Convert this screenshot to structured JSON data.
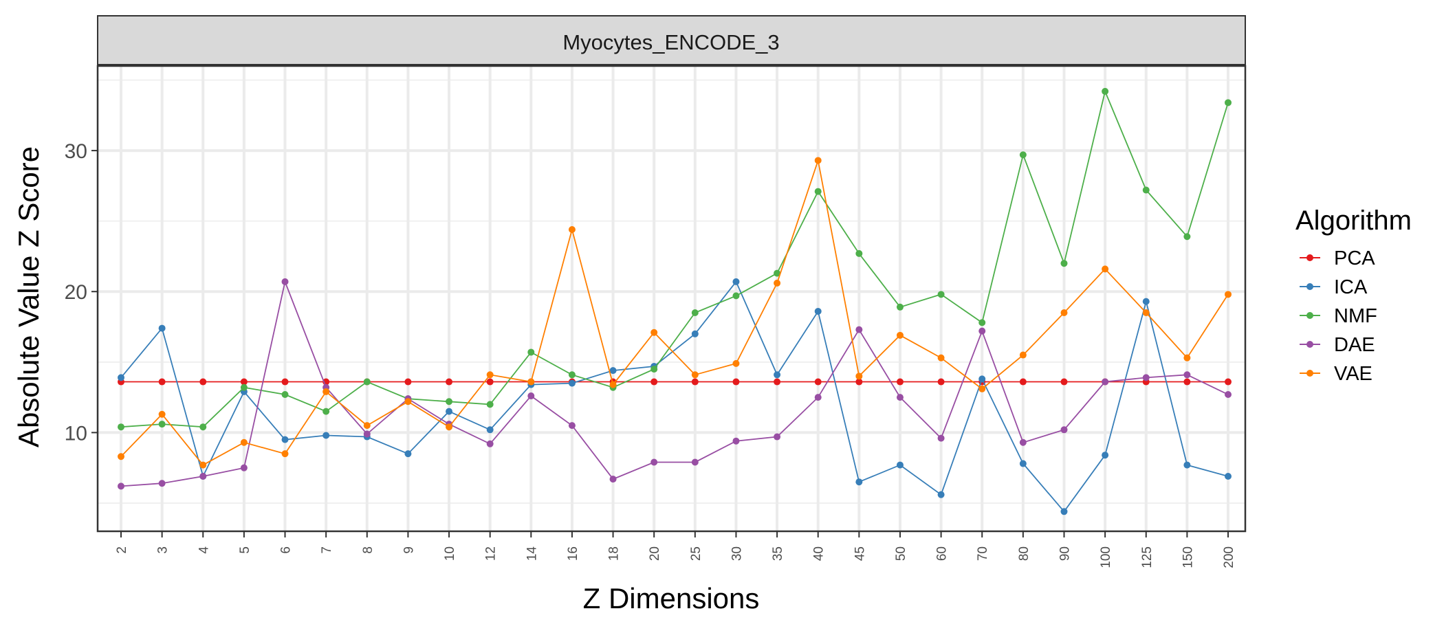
{
  "chart_data": {
    "type": "line",
    "title": "",
    "facet_label": "Myocytes_ENCODE_3",
    "xlabel": "Z Dimensions",
    "ylabel": "Absolute Value Z Score",
    "ylim": [
      3,
      36
    ],
    "y_ticks": [
      10,
      20,
      30
    ],
    "grid": true,
    "legend_title": "Algorithm",
    "legend_position": "right",
    "categories": [
      "2",
      "3",
      "4",
      "5",
      "6",
      "7",
      "8",
      "9",
      "10",
      "12",
      "14",
      "16",
      "18",
      "20",
      "25",
      "30",
      "35",
      "40",
      "45",
      "50",
      "60",
      "70",
      "80",
      "90",
      "100",
      "125",
      "150",
      "200"
    ],
    "series": [
      {
        "name": "PCA",
        "color": "#e41a1c",
        "values": [
          13.6,
          13.6,
          13.6,
          13.6,
          13.6,
          13.6,
          13.6,
          13.6,
          13.6,
          13.6,
          13.6,
          13.6,
          13.6,
          13.6,
          13.6,
          13.6,
          13.6,
          13.6,
          13.6,
          13.6,
          13.6,
          13.6,
          13.6,
          13.6,
          13.6,
          13.6,
          13.6,
          13.6
        ]
      },
      {
        "name": "ICA",
        "color": "#377eb8",
        "values": [
          13.9,
          17.4,
          6.9,
          12.9,
          9.5,
          9.8,
          9.7,
          8.5,
          11.5,
          10.2,
          13.4,
          13.5,
          14.4,
          14.7,
          17.0,
          20.7,
          14.1,
          18.6,
          6.5,
          7.7,
          5.6,
          13.8,
          7.8,
          4.4,
          8.4,
          19.3,
          7.7,
          6.9
        ]
      },
      {
        "name": "NMF",
        "color": "#4daf4a",
        "values": [
          10.4,
          10.6,
          10.4,
          13.2,
          12.7,
          11.5,
          13.6,
          12.4,
          12.2,
          12.0,
          15.7,
          14.1,
          13.2,
          14.5,
          18.5,
          19.7,
          21.3,
          27.1,
          22.7,
          18.9,
          19.8,
          17.8,
          29.7,
          22.0,
          34.2,
          27.2,
          23.9,
          33.4
        ]
      },
      {
        "name": "DAE",
        "color": "#984ea3",
        "values": [
          6.2,
          6.4,
          6.9,
          7.5,
          20.7,
          13.2,
          9.9,
          12.4,
          10.6,
          9.2,
          12.6,
          10.5,
          6.7,
          7.9,
          7.9,
          9.4,
          9.7,
          12.5,
          17.3,
          12.5,
          9.6,
          17.2,
          9.3,
          10.2,
          13.6,
          13.9,
          14.1,
          12.7
        ]
      },
      {
        "name": "VAE",
        "color": "#ff7f00",
        "values": [
          8.3,
          11.3,
          7.7,
          9.3,
          8.5,
          12.9,
          10.5,
          12.2,
          10.4,
          14.1,
          13.6,
          24.4,
          13.4,
          17.1,
          14.1,
          14.9,
          20.6,
          29.3,
          14.0,
          16.9,
          15.3,
          13.1,
          15.5,
          18.5,
          21.6,
          18.5,
          15.3,
          19.8
        ]
      }
    ]
  }
}
